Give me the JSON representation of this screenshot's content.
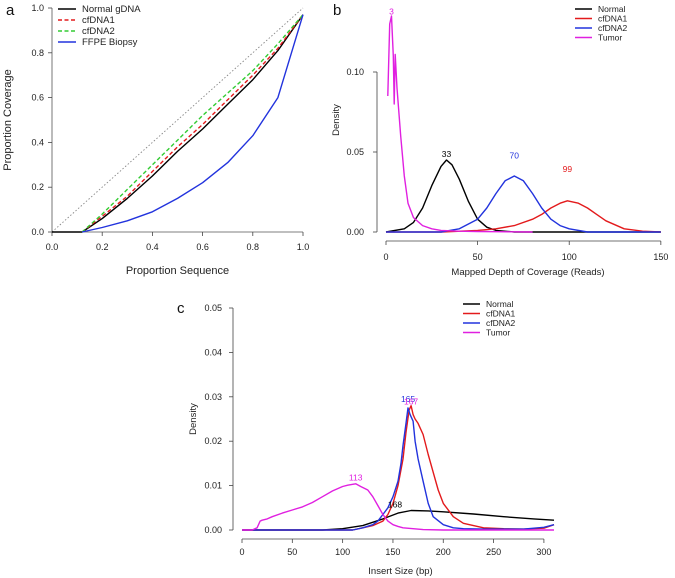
{
  "chart_data": [
    {
      "panel": "a",
      "type": "line",
      "xlabel": "Proportion Sequence",
      "ylabel": "Proportion Coverage",
      "xlim": [
        0,
        1
      ],
      "ylim": [
        0,
        1
      ],
      "xticks": [
        "0.0",
        "0.2",
        "0.4",
        "0.6",
        "0.8",
        "1.0"
      ],
      "yticks": [
        "0.0",
        "0.2",
        "0.4",
        "0.6",
        "0.8",
        "1.0"
      ],
      "legend_position": "top-left",
      "reference_line": "diagonal dotted",
      "series": [
        {
          "name": "Normal gDNA",
          "color": "#000000",
          "style": "solid",
          "x": [
            0,
            0.12,
            0.2,
            0.3,
            0.4,
            0.5,
            0.6,
            0.7,
            0.8,
            0.9,
            1.0
          ],
          "y": [
            0,
            0,
            0.06,
            0.15,
            0.25,
            0.36,
            0.46,
            0.57,
            0.68,
            0.81,
            0.97
          ]
        },
        {
          "name": "cfDNA1",
          "color": "#e31a1c",
          "style": "dashed",
          "x": [
            0.12,
            0.2,
            0.3,
            0.4,
            0.5,
            0.6,
            0.7,
            0.8,
            0.9,
            1.0
          ],
          "y": [
            0,
            0.07,
            0.16,
            0.27,
            0.38,
            0.48,
            0.59,
            0.7,
            0.82,
            0.97
          ]
        },
        {
          "name": "cfDNA2",
          "color": "#33cc33",
          "style": "dashed",
          "x": [
            0.12,
            0.2,
            0.3,
            0.4,
            0.5,
            0.6,
            0.7,
            0.8,
            0.9,
            1.0
          ],
          "y": [
            0,
            0.08,
            0.19,
            0.3,
            0.41,
            0.52,
            0.62,
            0.72,
            0.84,
            0.97
          ]
        },
        {
          "name": "FFPE Biopsy",
          "color": "#2233dd",
          "style": "solid",
          "x": [
            0.12,
            0.2,
            0.3,
            0.4,
            0.5,
            0.6,
            0.7,
            0.8,
            0.9,
            1.0
          ],
          "y": [
            0,
            0.02,
            0.05,
            0.09,
            0.15,
            0.22,
            0.31,
            0.43,
            0.6,
            0.97
          ]
        }
      ]
    },
    {
      "panel": "b",
      "type": "line",
      "xlabel": "Mapped Depth of Coverage (Reads)",
      "ylabel": "Density",
      "xlim": [
        0,
        155
      ],
      "ylim": [
        0,
        0.14
      ],
      "xticks": [
        "0",
        "50",
        "100",
        "150"
      ],
      "yticks": [
        "0.00",
        "0.05",
        "0.10"
      ],
      "legend_position": "top-right",
      "series": [
        {
          "name": "Normal",
          "color": "#000000",
          "x": [
            0,
            10,
            15,
            20,
            25,
            30,
            33,
            36,
            40,
            45,
            50,
            55,
            60,
            70,
            80,
            150
          ],
          "y": [
            0,
            0.002,
            0.006,
            0.015,
            0.029,
            0.041,
            0.045,
            0.042,
            0.033,
            0.019,
            0.008,
            0.003,
            0.001,
            0,
            0,
            0
          ]
        },
        {
          "name": "cfDNA1",
          "color": "#e31a1c",
          "x": [
            0,
            30,
            50,
            60,
            70,
            80,
            85,
            90,
            95,
            99,
            105,
            110,
            115,
            120,
            130,
            140,
            150
          ],
          "y": [
            0,
            0,
            0.001,
            0.002,
            0.004,
            0.008,
            0.011,
            0.015,
            0.018,
            0.0195,
            0.018,
            0.015,
            0.011,
            0.007,
            0.002,
            0.0005,
            0
          ]
        },
        {
          "name": "cfDNA2",
          "color": "#2233dd",
          "x": [
            0,
            30,
            40,
            50,
            55,
            60,
            65,
            70,
            75,
            80,
            85,
            90,
            95,
            100,
            110,
            150
          ],
          "y": [
            0,
            0,
            0.002,
            0.008,
            0.015,
            0.024,
            0.032,
            0.035,
            0.032,
            0.024,
            0.015,
            0.008,
            0.004,
            0.002,
            0,
            0
          ]
        },
        {
          "name": "Tumor",
          "color": "#e020e0",
          "x": [
            1,
            2,
            3,
            4,
            4.5,
            5,
            6,
            8,
            10,
            12,
            15,
            20,
            25,
            30,
            40,
            50,
            60,
            70,
            80
          ],
          "y": [
            0.085,
            0.13,
            0.135,
            0.11,
            0.08,
            0.111,
            0.09,
            0.06,
            0.035,
            0.018,
            0.009,
            0.004,
            0.002,
            0.001,
            0.0005,
            0.0003,
            0.0002,
            0.0001,
            0
          ]
        }
      ],
      "annotations": [
        {
          "text": "3",
          "x": 3,
          "y": 0.136,
          "color": "#e020e0"
        },
        {
          "text": "33",
          "x": 33,
          "y": 0.047,
          "color": "#000000"
        },
        {
          "text": "70",
          "x": 70,
          "y": 0.046,
          "color": "#2233dd"
        },
        {
          "text": "99",
          "x": 99,
          "y": 0.0375,
          "color": "#e31a1c"
        }
      ]
    },
    {
      "panel": "c",
      "type": "line",
      "xlabel": "Insert Size (bp)",
      "ylabel": "Density",
      "xlim": [
        0,
        315
      ],
      "ylim": [
        0,
        0.05
      ],
      "xticks": [
        "0",
        "50",
        "100",
        "150",
        "200",
        "250",
        "300"
      ],
      "yticks": [
        "0.00",
        "0.01",
        "0.02",
        "0.03",
        "0.04",
        "0.05"
      ],
      "legend_position": "top-right",
      "series": [
        {
          "name": "Normal",
          "color": "#000000",
          "x": [
            0,
            80,
            100,
            120,
            140,
            155,
            168,
            185,
            200,
            230,
            260,
            290,
            310
          ],
          "y": [
            0,
            0,
            0.0003,
            0.001,
            0.0025,
            0.0038,
            0.0044,
            0.0043,
            0.0041,
            0.0036,
            0.003,
            0.0025,
            0.0022
          ]
        },
        {
          "name": "cfDNA1",
          "color": "#e31a1c",
          "x": [
            0,
            110,
            120,
            130,
            140,
            145,
            150,
            155,
            160,
            163,
            166,
            168,
            170,
            172,
            175,
            180,
            185,
            190,
            195,
            200,
            210,
            220,
            240,
            260,
            280,
            300,
            310
          ],
          "y": [
            0,
            0,
            0.0005,
            0.001,
            0.002,
            0.0035,
            0.006,
            0.01,
            0.016,
            0.022,
            0.027,
            0.028,
            0.026,
            0.025,
            0.024,
            0.0215,
            0.017,
            0.013,
            0.009,
            0.006,
            0.003,
            0.0015,
            0.0005,
            0.0003,
            0.0002,
            0.0004,
            0.0012
          ]
        },
        {
          "name": "cfDNA2",
          "color": "#2233dd",
          "x": [
            0,
            110,
            120,
            130,
            135,
            140,
            145,
            150,
            155,
            158,
            160,
            163,
            165,
            167,
            170,
            172,
            175,
            180,
            185,
            190,
            200,
            210,
            220,
            240,
            260,
            280,
            300,
            310
          ],
          "y": [
            0,
            0,
            0.0005,
            0.0012,
            0.002,
            0.0035,
            0.005,
            0.0075,
            0.011,
            0.015,
            0.019,
            0.024,
            0.0275,
            0.026,
            0.0245,
            0.02,
            0.016,
            0.011,
            0.006,
            0.003,
            0.0012,
            0.0005,
            0.0003,
            0.0002,
            0.0002,
            0.0002,
            0.0006,
            0.0012
          ]
        },
        {
          "name": "Tumor",
          "color": "#e020e0",
          "x": [
            0,
            10,
            15,
            18,
            20,
            25,
            30,
            40,
            50,
            60,
            70,
            80,
            90,
            100,
            105,
            110,
            113,
            118,
            125,
            130,
            135,
            140,
            145,
            150,
            155,
            160,
            170,
            180,
            200,
            250,
            300,
            310
          ],
          "y": [
            0,
            0,
            0.0005,
            0.002,
            0.0022,
            0.0025,
            0.003,
            0.0038,
            0.0045,
            0.0052,
            0.0062,
            0.0075,
            0.0088,
            0.0098,
            0.0101,
            0.0103,
            0.0104,
            0.0098,
            0.009,
            0.0075,
            0.0055,
            0.0035,
            0.002,
            0.0012,
            0.0008,
            0.0005,
            0.0003,
            0.0001,
            0,
            0,
            0,
            0
          ]
        }
      ],
      "annotations": [
        {
          "text": "113",
          "x": 113,
          "y": 0.0112,
          "color": "#e020e0"
        },
        {
          "text": "168",
          "x": 152,
          "y": 0.0051,
          "color": "#000000"
        },
        {
          "text": "165",
          "x": 165,
          "y": 0.0288,
          "color": "#2233dd"
        },
        {
          "text": "167",
          "x": 168,
          "y": 0.0283,
          "color": "#e020e0"
        }
      ]
    }
  ]
}
